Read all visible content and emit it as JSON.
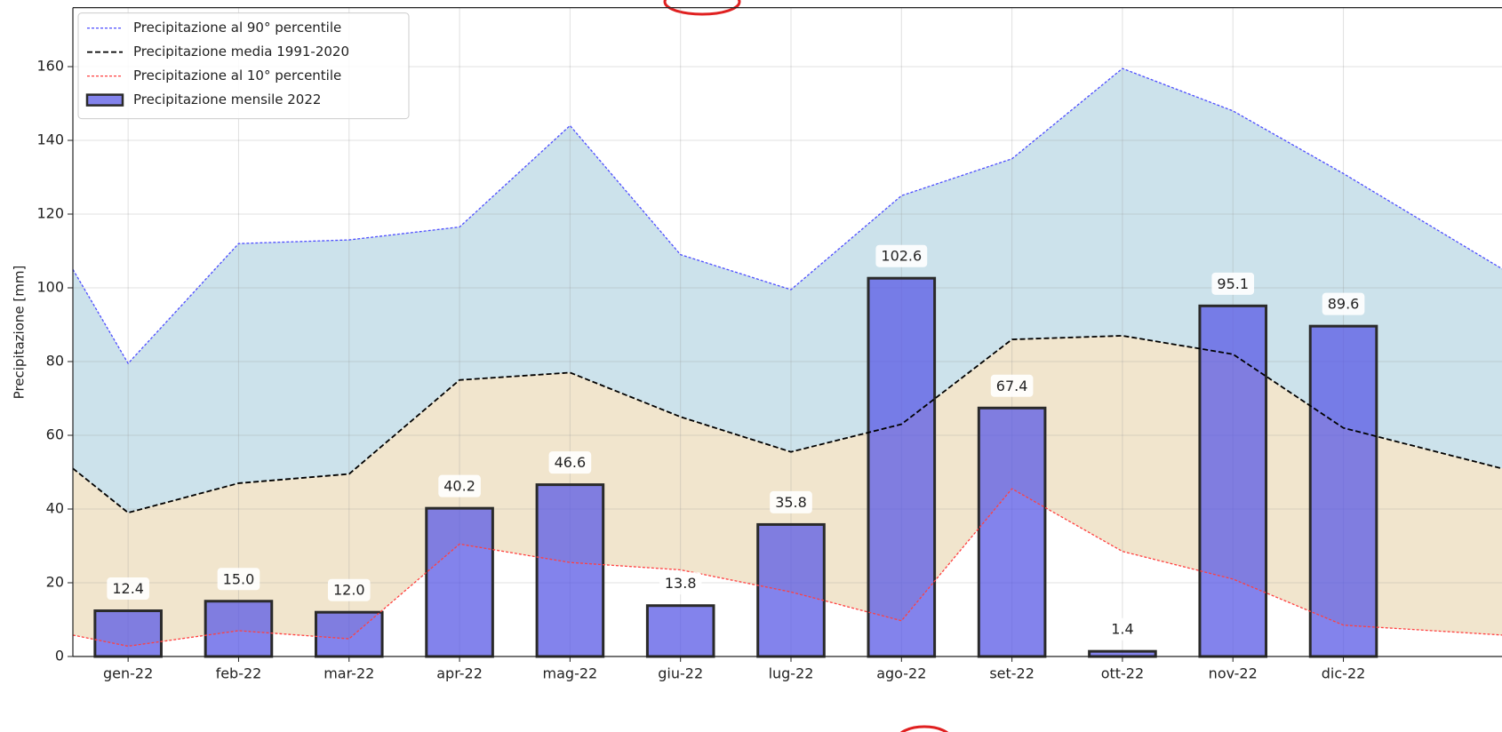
{
  "chart_data": {
    "type": "bar",
    "y_label": "Precipitazione [mm]",
    "categories": [
      "gen-22",
      "feb-22",
      "mar-22",
      "apr-22",
      "mag-22",
      "giu-22",
      "lug-22",
      "ago-22",
      "set-22",
      "ott-22",
      "nov-22",
      "dic-22"
    ],
    "xlim": [
      -0.5,
      12.5
    ],
    "ylim": [
      0,
      176
    ],
    "yticks": [
      0,
      20,
      40,
      60,
      80,
      100,
      120,
      140,
      160
    ],
    "grid": true,
    "legend": "upper left",
    "series": [
      {
        "name": "Precipitazione al 90° percentile",
        "type": "line",
        "color": "#4d4dff",
        "area_color": "#c7dfe9",
        "x": [
          -0.5,
          0,
          1,
          2,
          3,
          4,
          5,
          6,
          7,
          8,
          9,
          10,
          11,
          12.5
        ],
        "values": [
          105,
          79.5,
          112,
          113,
          116.5,
          144,
          109,
          99.5,
          125,
          135,
          159.5,
          148,
          131,
          104
        ]
      },
      {
        "name": "Precipitazione media 1991-2020",
        "type": "line",
        "color": "#000000",
        "area_color": "#efe2c8",
        "x": [
          -0.5,
          0,
          1,
          2,
          3,
          4,
          5,
          6,
          7,
          8,
          9,
          10,
          11,
          12.5
        ],
        "values": [
          51,
          39,
          47,
          49.5,
          75,
          77,
          65,
          55.5,
          63,
          86,
          87,
          82,
          62,
          50.5
        ]
      },
      {
        "name": "Precipitazione al 10° percentile",
        "type": "line",
        "color": "#ff4040",
        "x": [
          -0.5,
          0,
          1,
          2,
          3,
          4,
          5,
          6,
          7,
          8,
          9,
          10,
          11,
          12.5
        ],
        "values": [
          5.8,
          2.8,
          7,
          4.8,
          30.5,
          25.5,
          23.5,
          17.5,
          9.7,
          45.5,
          28.5,
          21,
          8.5,
          5.7
        ]
      },
      {
        "name": "Precipitazione mensile 2022",
        "type": "bar",
        "color": "#5a5ae6",
        "edge_color": "#2a2a2a",
        "values": [
          12.4,
          15.0,
          12.0,
          40.2,
          46.6,
          13.8,
          35.8,
          102.6,
          67.4,
          1.4,
          95.1,
          89.6
        ],
        "value_labels": [
          "12.4",
          "15.0",
          "12.0",
          "40.2",
          "46.6",
          "13.8",
          "35.8",
          "102.6",
          "67.4",
          "1.4",
          "95.1",
          "89.6"
        ]
      }
    ]
  }
}
